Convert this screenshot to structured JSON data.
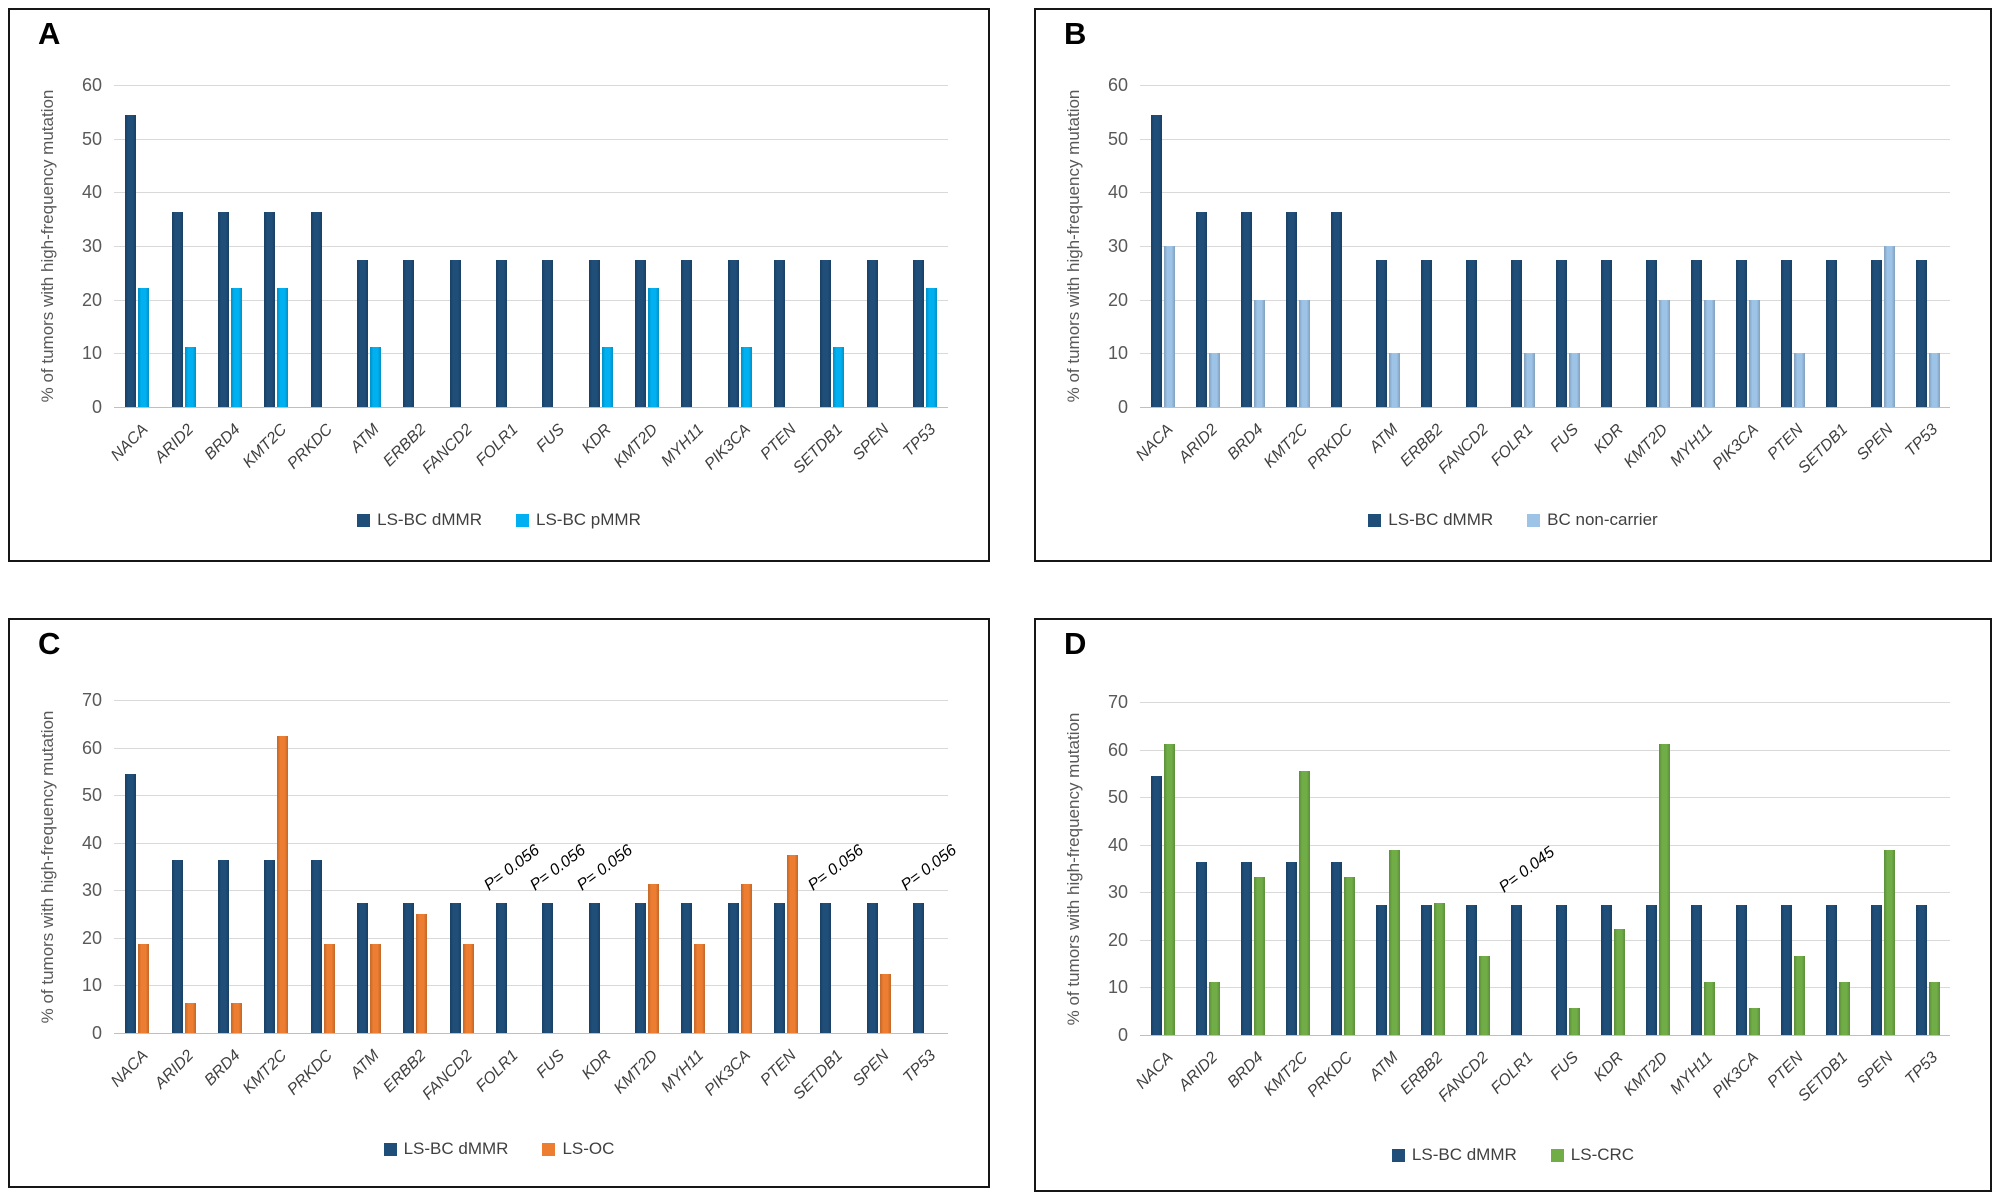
{
  "figure": {
    "y_axis_title": "% of tumors with high-frequency mutation",
    "colors": {
      "ls_bc_dmmr": "#1F4E79",
      "ls_bc_pmmr": "#00B0F0",
      "bc_non_carrier": "#9DC3E6",
      "ls_oc": "#ED7D31",
      "ls_crc": "#70AD47",
      "gridline": "#d9d9d9"
    }
  },
  "panels": [
    {
      "label": "A",
      "chart_data": {
        "type": "bar",
        "title": "",
        "xlabel": "",
        "ylabel": "% of tumors with high-frequency mutation",
        "ylim": [
          0,
          60
        ],
        "yticks": [
          0,
          10,
          20,
          30,
          40,
          50,
          60
        ],
        "grid": "horizontal",
        "legend_position": "bottom",
        "categories": [
          "NACA",
          "ARID2",
          "BRD4",
          "KMT2C",
          "PRKDC",
          "ATM",
          "ERBB2",
          "FANCD2",
          "FOLR1",
          "FUS",
          "KDR",
          "KMT2D",
          "MYH11",
          "PIK3CA",
          "PTEN",
          "SETDB1",
          "SPEN",
          "TP53"
        ],
        "series": [
          {
            "name": "LS-BC dMMR",
            "color": "#1F4E79",
            "values": [
              54.5,
              36.4,
              36.4,
              36.4,
              36.4,
              27.3,
              27.3,
              27.3,
              27.3,
              27.3,
              27.3,
              27.3,
              27.3,
              27.3,
              27.3,
              27.3,
              27.3,
              27.3
            ]
          },
          {
            "name": "LS-BC pMMR",
            "color": "#00B0F0",
            "values": [
              22.2,
              11.1,
              22.2,
              22.2,
              0,
              11.1,
              0,
              0,
              0,
              0,
              11.1,
              22.2,
              0,
              11.1,
              0,
              11.1,
              0,
              22.2
            ]
          }
        ],
        "annotations": []
      }
    },
    {
      "label": "B",
      "chart_data": {
        "type": "bar",
        "title": "",
        "xlabel": "",
        "ylabel": "% of tumors with high-frequency mutation",
        "ylim": [
          0,
          60
        ],
        "yticks": [
          0,
          10,
          20,
          30,
          40,
          50,
          60
        ],
        "grid": "horizontal",
        "legend_position": "bottom",
        "categories": [
          "NACA",
          "ARID2",
          "BRD4",
          "KMT2C",
          "PRKDC",
          "ATM",
          "ERBB2",
          "FANCD2",
          "FOLR1",
          "FUS",
          "KDR",
          "KMT2D",
          "MYH11",
          "PIK3CA",
          "PTEN",
          "SETDB1",
          "SPEN",
          "TP53"
        ],
        "series": [
          {
            "name": "LS-BC dMMR",
            "color": "#1F4E79",
            "values": [
              54.5,
              36.4,
              36.4,
              36.4,
              36.4,
              27.3,
              27.3,
              27.3,
              27.3,
              27.3,
              27.3,
              27.3,
              27.3,
              27.3,
              27.3,
              27.3,
              27.3,
              27.3
            ]
          },
          {
            "name": "BC non-carrier",
            "color": "#9DC3E6",
            "values": [
              30,
              10,
              20,
              20,
              0,
              10,
              0,
              0,
              10,
              10,
              0,
              20,
              20,
              20,
              10,
              0,
              30,
              10
            ]
          }
        ],
        "annotations": []
      }
    },
    {
      "label": "C",
      "chart_data": {
        "type": "bar",
        "title": "",
        "xlabel": "",
        "ylabel": "% of tumors with high-frequency mutation",
        "ylim": [
          0,
          70
        ],
        "yticks": [
          0,
          10,
          20,
          30,
          40,
          50,
          60,
          70
        ],
        "grid": "horizontal",
        "legend_position": "bottom",
        "categories": [
          "NACA",
          "ARID2",
          "BRD4",
          "KMT2C",
          "PRKDC",
          "ATM",
          "ERBB2",
          "FANCD2",
          "FOLR1",
          "FUS",
          "KDR",
          "KMT2D",
          "MYH11",
          "PIK3CA",
          "PTEN",
          "SETDB1",
          "SPEN",
          "TP53"
        ],
        "series": [
          {
            "name": "LS-BC dMMR",
            "color": "#1F4E79",
            "values": [
              54.5,
              36.4,
              36.4,
              36.4,
              36.4,
              27.3,
              27.3,
              27.3,
              27.3,
              27.3,
              27.3,
              27.3,
              27.3,
              27.3,
              27.3,
              27.3,
              27.3,
              27.3
            ]
          },
          {
            "name": "LS-OC",
            "color": "#ED7D31",
            "values": [
              18.8,
              6.3,
              6.3,
              62.5,
              18.8,
              18.8,
              25,
              18.8,
              0,
              0,
              0,
              31.3,
              18.8,
              31.3,
              37.5,
              0,
              12.5,
              0
            ]
          }
        ],
        "annotations": [
          {
            "text": "P= 0.056",
            "category": "FOLR1"
          },
          {
            "text": "P= 0.056",
            "category": "FUS"
          },
          {
            "text": "P= 0.056",
            "category": "KDR"
          },
          {
            "text": "P= 0.056",
            "category": "SETDB1"
          },
          {
            "text": "P= 0.056",
            "category": "TP53"
          }
        ]
      }
    },
    {
      "label": "D",
      "chart_data": {
        "type": "bar",
        "title": "",
        "xlabel": "",
        "ylabel": "% of tumors with high-frequency mutation",
        "ylim": [
          0,
          70
        ],
        "yticks": [
          0,
          10,
          20,
          30,
          40,
          50,
          60,
          70
        ],
        "grid": "horizontal",
        "legend_position": "bottom",
        "categories": [
          "NACA",
          "ARID2",
          "BRD4",
          "KMT2C",
          "PRKDC",
          "ATM",
          "ERBB2",
          "FANCD2",
          "FOLR1",
          "FUS",
          "KDR",
          "KMT2D",
          "MYH11",
          "PIK3CA",
          "PTEN",
          "SETDB1",
          "SPEN",
          "TP53"
        ],
        "series": [
          {
            "name": "LS-BC dMMR",
            "color": "#1F4E79",
            "values": [
              54.5,
              36.4,
              36.4,
              36.4,
              36.4,
              27.3,
              27.3,
              27.3,
              27.3,
              27.3,
              27.3,
              27.3,
              27.3,
              27.3,
              27.3,
              27.3,
              27.3,
              27.3
            ]
          },
          {
            "name": "LS-CRC",
            "color": "#70AD47",
            "values": [
              61.1,
              11.1,
              33.3,
              55.6,
              33.3,
              38.9,
              27.8,
              16.7,
              0,
              5.6,
              22.2,
              61.1,
              11.1,
              5.6,
              16.7,
              11.1,
              38.9,
              11.1
            ]
          }
        ],
        "annotations": [
          {
            "text": "P= 0.045",
            "category": "FOLR1"
          }
        ]
      }
    }
  ]
}
